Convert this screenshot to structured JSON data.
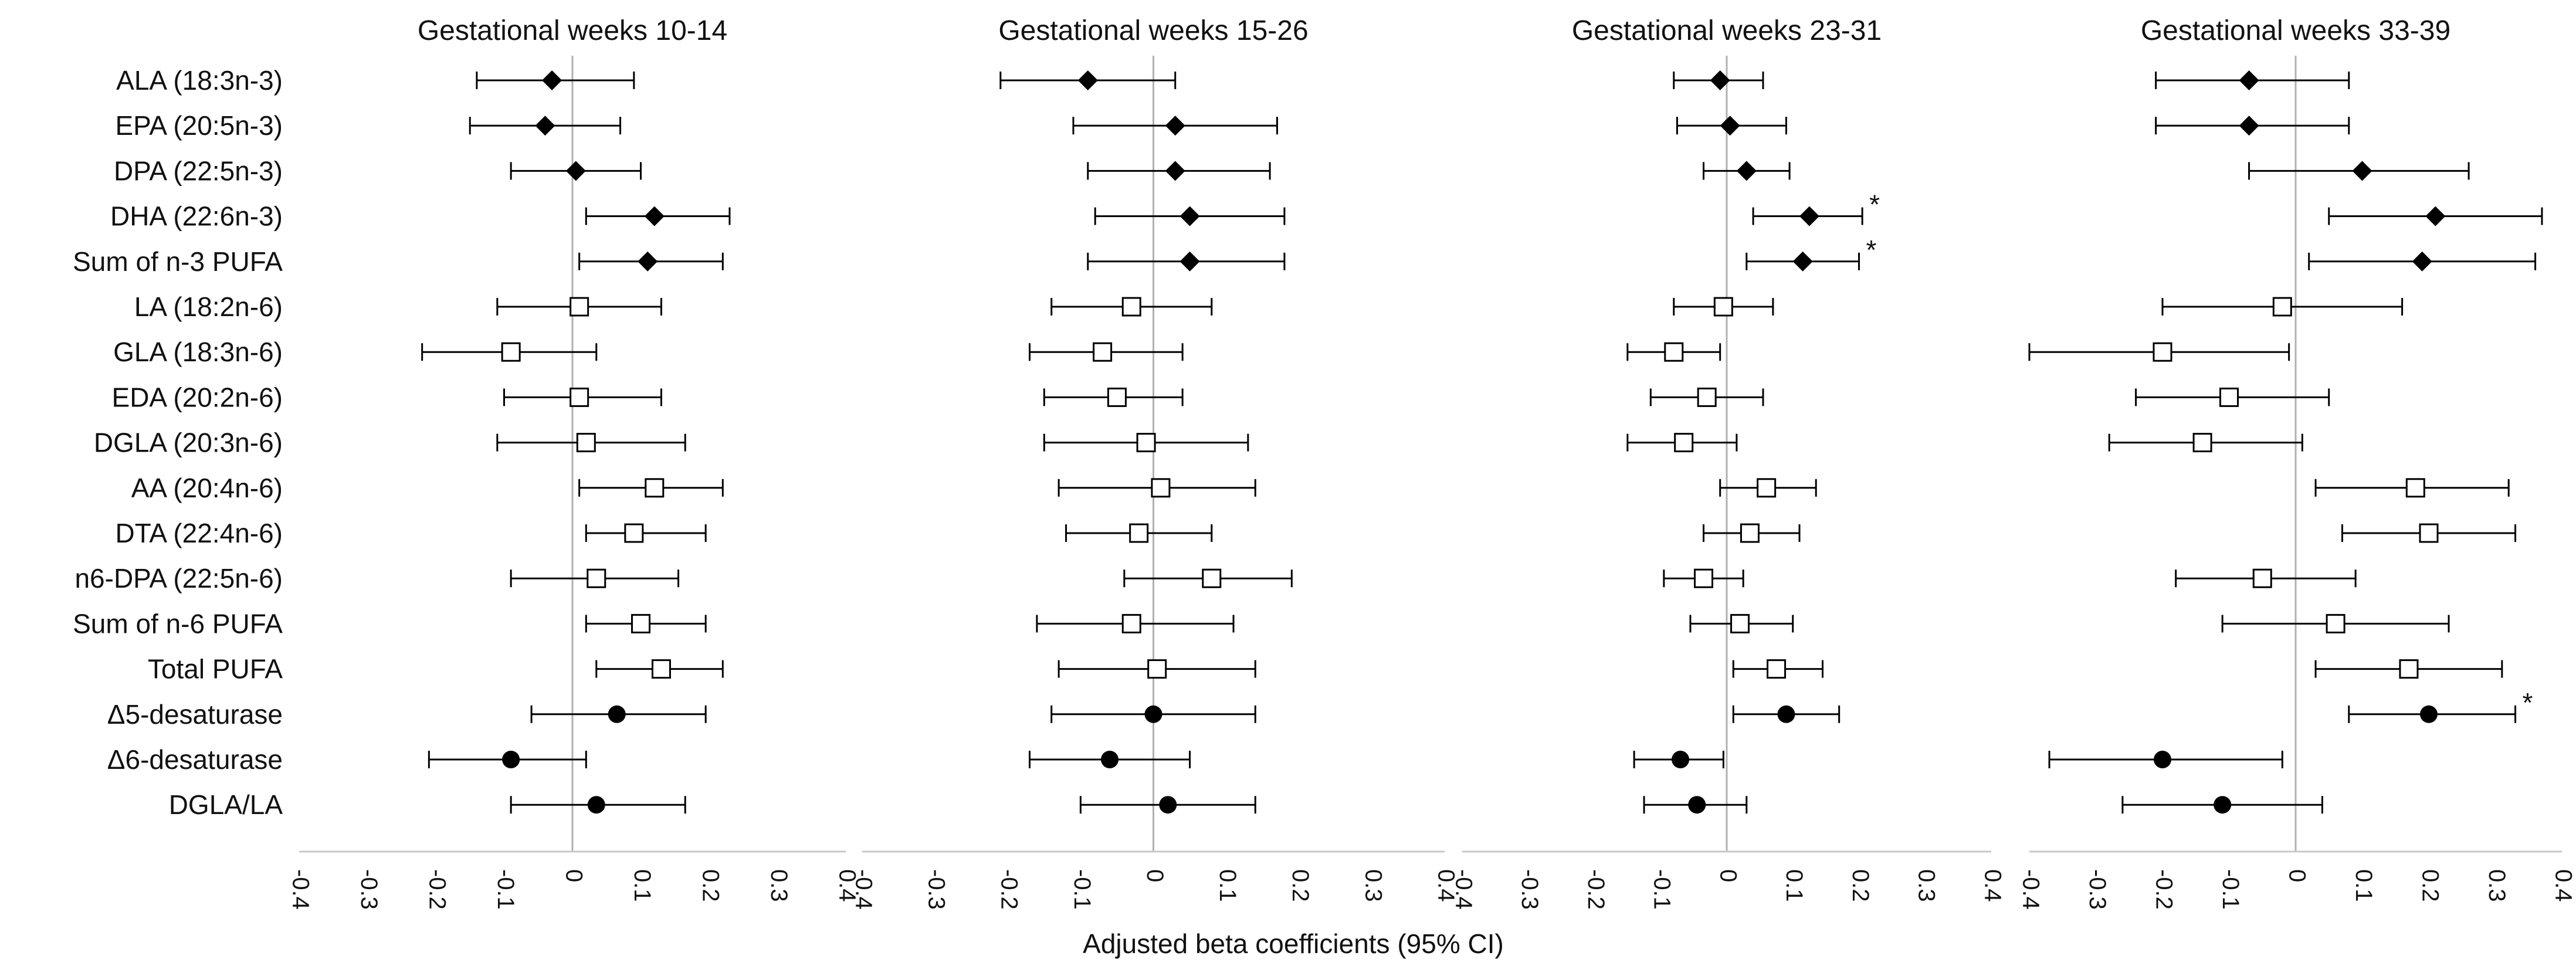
{
  "chart_data": {
    "type": "forest",
    "xlabel": "Adjusted beta coefficients (95% CI)",
    "categories": [
      "ALA (18:3n-3)",
      "EPA (20:5n-3)",
      "DPA (22:5n-3)",
      "DHA (22:6n-3)",
      "Sum of n-3 PUFA",
      "LA (18:2n-6)",
      "GLA (18:3n-6)",
      "EDA (20:2n-6)",
      "DGLA (20:3n-6)",
      "AA (20:4n-6)",
      "DTA (22:4n-6)",
      "n6-DPA (22:5n-6)",
      "Sum of n-6 PUFA",
      "Total PUFA",
      "Δ5-desaturase",
      "Δ6-desaturase",
      "DGLA/LA"
    ],
    "marker_groups": [
      {
        "marker": "filled-diamond",
        "rows": [
          0,
          1,
          2,
          3,
          4
        ]
      },
      {
        "marker": "open-square",
        "rows": [
          5,
          6,
          7,
          8,
          9,
          10,
          11,
          12,
          13
        ]
      },
      {
        "marker": "filled-circle",
        "rows": [
          14,
          15,
          16
        ]
      }
    ],
    "xlim": [
      -0.4,
      0.4
    ],
    "xticks": [
      -0.4,
      -0.3,
      -0.2,
      -0.1,
      0,
      0.1,
      0.2,
      0.3,
      0.4
    ],
    "xtick_labels": [
      "-0.4",
      "-0.3",
      "-0.2",
      "-0.1",
      "0",
      "0.1",
      "0.2",
      "0.3",
      "0.4"
    ],
    "reference_line": 0,
    "colors": {
      "ink": "#000000",
      "reference": "#b0b0b0",
      "axis": "#c8c8c8"
    },
    "panels": [
      {
        "title": "Gestational weeks 10-14",
        "estimate": [
          -0.03,
          -0.04,
          0.005,
          0.12,
          0.11,
          0.01,
          -0.09,
          0.01,
          0.02,
          0.12,
          0.09,
          0.035,
          0.1,
          0.13,
          0.065,
          -0.09,
          0.035
        ],
        "lower": [
          -0.14,
          -0.15,
          -0.09,
          0.02,
          0.01,
          -0.11,
          -0.22,
          -0.1,
          -0.11,
          0.01,
          0.02,
          -0.09,
          0.02,
          0.035,
          -0.06,
          -0.21,
          -0.09
        ],
        "upper": [
          0.09,
          0.07,
          0.1,
          0.23,
          0.22,
          0.13,
          0.035,
          0.13,
          0.165,
          0.22,
          0.195,
          0.155,
          0.195,
          0.22,
          0.195,
          0.02,
          0.165
        ],
        "significant": []
      },
      {
        "title": "Gestational weeks 15-26",
        "estimate": [
          -0.09,
          0.03,
          0.03,
          0.05,
          0.05,
          -0.03,
          -0.07,
          -0.05,
          -0.01,
          0.01,
          -0.02,
          0.08,
          -0.03,
          0.005,
          0.0,
          -0.06,
          0.02
        ],
        "lower": [
          -0.21,
          -0.11,
          -0.09,
          -0.08,
          -0.09,
          -0.14,
          -0.17,
          -0.15,
          -0.15,
          -0.13,
          -0.12,
          -0.04,
          -0.16,
          -0.13,
          -0.14,
          -0.17,
          -0.1
        ],
        "upper": [
          0.03,
          0.17,
          0.16,
          0.18,
          0.18,
          0.08,
          0.04,
          0.04,
          0.13,
          0.14,
          0.08,
          0.19,
          0.11,
          0.14,
          0.14,
          0.05,
          0.14
        ],
        "significant": []
      },
      {
        "title": "Gestational weeks 23-31",
        "estimate": [
          -0.01,
          0.005,
          0.03,
          0.125,
          0.115,
          -0.005,
          -0.08,
          -0.03,
          -0.065,
          0.06,
          0.035,
          -0.035,
          0.02,
          0.075,
          0.09,
          -0.07,
          -0.045
        ],
        "lower": [
          -0.08,
          -0.075,
          -0.035,
          0.04,
          0.03,
          -0.08,
          -0.15,
          -0.115,
          -0.15,
          -0.01,
          -0.035,
          -0.095,
          -0.055,
          0.01,
          0.01,
          -0.14,
          -0.125
        ],
        "upper": [
          0.055,
          0.09,
          0.095,
          0.205,
          0.2,
          0.07,
          -0.01,
          0.055,
          0.015,
          0.135,
          0.11,
          0.025,
          0.1,
          0.145,
          0.17,
          -0.005,
          0.03
        ],
        "significant": [
          3,
          4
        ]
      },
      {
        "title": "Gestational weeks 33-39",
        "estimate": [
          -0.07,
          -0.07,
          0.1,
          0.21,
          0.19,
          -0.02,
          -0.2,
          -0.1,
          -0.14,
          0.18,
          0.2,
          -0.05,
          0.06,
          0.17,
          0.2,
          -0.2,
          -0.11
        ],
        "lower": [
          -0.21,
          -0.21,
          -0.07,
          0.05,
          0.02,
          -0.2,
          -0.4,
          -0.24,
          -0.28,
          0.03,
          0.07,
          -0.18,
          -0.11,
          0.03,
          0.08,
          -0.37,
          -0.26
        ],
        "upper": [
          0.08,
          0.08,
          0.26,
          0.37,
          0.36,
          0.16,
          -0.01,
          0.05,
          0.01,
          0.32,
          0.33,
          0.09,
          0.23,
          0.31,
          0.33,
          -0.02,
          0.04
        ],
        "significant": [
          14
        ]
      }
    ]
  }
}
